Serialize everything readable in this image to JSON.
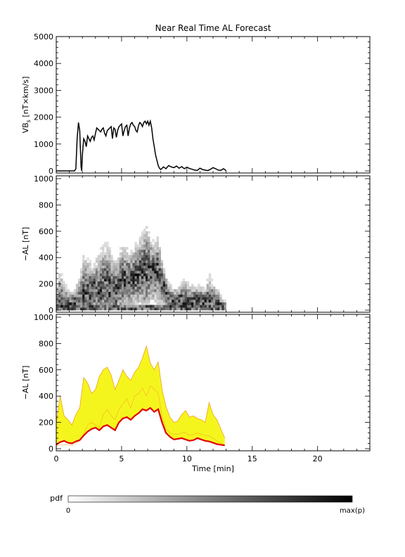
{
  "chart_data": [
    {
      "type": "line",
      "panel": "vbs",
      "title": "Near Real Time AL Forecast",
      "ylabel": "VB",
      "ylabel_sub": "s",
      "ylabel_unit": " [nT×km/s]",
      "xlim": [
        0,
        24
      ],
      "ylim": [
        0,
        5000
      ],
      "yticks": [
        0,
        1000,
        2000,
        3000,
        4000,
        5000
      ],
      "series": [
        {
          "color": "#000000",
          "x": [
            0.0,
            1.4,
            1.5,
            1.6,
            1.7,
            1.8,
            1.9,
            1.95,
            2.0,
            2.1,
            2.2,
            2.3,
            2.4,
            2.5,
            2.6,
            2.7,
            2.8,
            2.9,
            3.0,
            3.1,
            3.2,
            3.3,
            3.4,
            3.5,
            3.6,
            3.7,
            3.8,
            3.9,
            4.0,
            4.1,
            4.2,
            4.3,
            4.4,
            4.5,
            4.6,
            4.7,
            4.8,
            4.9,
            5.0,
            5.1,
            5.2,
            5.3,
            5.4,
            5.5,
            5.6,
            5.7,
            5.8,
            5.9,
            6.0,
            6.1,
            6.2,
            6.3,
            6.4,
            6.5,
            6.6,
            6.7,
            6.8,
            6.9,
            7.0,
            7.1,
            7.2,
            7.3,
            7.4,
            7.5,
            7.6,
            7.7,
            7.8,
            7.9,
            8.0,
            8.2,
            8.4,
            8.6,
            8.8,
            9.0,
            9.2,
            9.4,
            9.6,
            9.8,
            10.0,
            10.2,
            10.4,
            10.6,
            10.8,
            11.0,
            11.2,
            11.4,
            11.6,
            11.8,
            12.0,
            12.2,
            12.4,
            12.6,
            12.8,
            13.0
          ],
          "y": [
            0,
            0,
            80,
            1200,
            1800,
            1500,
            150,
            0,
            600,
            1200,
            1100,
            900,
            1300,
            1200,
            1100,
            1250,
            1300,
            1150,
            1400,
            1600,
            1550,
            1500,
            1450,
            1550,
            1600,
            1400,
            1300,
            1500,
            1550,
            1600,
            1650,
            1200,
            1600,
            1550,
            1250,
            1500,
            1650,
            1700,
            1750,
            1300,
            1500,
            1650,
            1700,
            1300,
            1600,
            1750,
            1800,
            1700,
            1650,
            1500,
            1450,
            1700,
            1800,
            1750,
            1650,
            1800,
            1850,
            1750,
            1850,
            1700,
            1850,
            1600,
            1200,
            900,
            600,
            400,
            200,
            100,
            50,
            150,
            80,
            200,
            150,
            120,
            180,
            100,
            160,
            80,
            140,
            90,
            60,
            30,
            20,
            100,
            50,
            30,
            10,
            60,
            120,
            80,
            30,
            20,
            80,
            10
          ]
        }
      ]
    },
    {
      "type": "heatmap",
      "panel": "pdf",
      "ylabel": "−AL [nT]",
      "xlim": [
        0,
        24
      ],
      "ylim": [
        0,
        1000
      ],
      "yticks": [
        0,
        200,
        400,
        600,
        800,
        1000
      ],
      "x_extent": [
        0,
        13
      ],
      "columns": 78,
      "rows": 50,
      "cell_spec": "density from the ensemble of forecast AL; darker = higher pdf"
    },
    {
      "type": "area",
      "panel": "forecast",
      "ylabel": "−AL [nT]",
      "xlabel": "Time [min]",
      "xlim": [
        0,
        24
      ],
      "ylim": [
        0,
        1000
      ],
      "xticks": [
        0,
        5,
        10,
        15,
        20
      ],
      "yticks": [
        0,
        200,
        400,
        600,
        800,
        1000
      ],
      "band_color": "#f5f51e",
      "band_edge_color": "#f0a020",
      "line_color": "#e00000",
      "x": [
        0.0,
        0.3,
        0.6,
        0.9,
        1.2,
        1.5,
        1.8,
        2.1,
        2.4,
        2.7,
        3.0,
        3.3,
        3.6,
        3.9,
        4.2,
        4.5,
        4.8,
        5.1,
        5.4,
        5.7,
        6.0,
        6.3,
        6.6,
        6.9,
        7.2,
        7.5,
        7.8,
        8.1,
        8.4,
        8.7,
        9.0,
        9.3,
        9.6,
        9.9,
        10.2,
        10.5,
        10.8,
        11.1,
        11.4,
        11.7,
        12.0,
        12.3,
        12.6,
        12.9
      ],
      "median": [
        30,
        50,
        60,
        45,
        40,
        55,
        65,
        100,
        130,
        150,
        160,
        140,
        170,
        180,
        160,
        140,
        200,
        230,
        240,
        220,
        250,
        270,
        300,
        290,
        310,
        280,
        300,
        200,
        120,
        90,
        70,
        75,
        80,
        70,
        60,
        65,
        80,
        70,
        60,
        55,
        45,
        35,
        30,
        25
      ],
      "upper": [
        200,
        400,
        250,
        220,
        180,
        260,
        310,
        540,
        500,
        420,
        450,
        550,
        600,
        620,
        560,
        450,
        520,
        600,
        550,
        520,
        580,
        620,
        690,
        780,
        650,
        600,
        660,
        450,
        320,
        240,
        200,
        210,
        260,
        290,
        240,
        250,
        230,
        220,
        200,
        350,
        260,
        220,
        150,
        80
      ],
      "lower": [
        20,
        30,
        30,
        30,
        25,
        40,
        60,
        110,
        180,
        200,
        180,
        160,
        260,
        300,
        250,
        220,
        300,
        340,
        380,
        310,
        400,
        420,
        460,
        400,
        480,
        450,
        420,
        250,
        150,
        120,
        110,
        110,
        120,
        120,
        100,
        110,
        120,
        110,
        100,
        100,
        80,
        60,
        40,
        30
      ]
    }
  ],
  "colorbar": {
    "label": "pdf",
    "min_label": "0",
    "max_label": "max(p)"
  }
}
